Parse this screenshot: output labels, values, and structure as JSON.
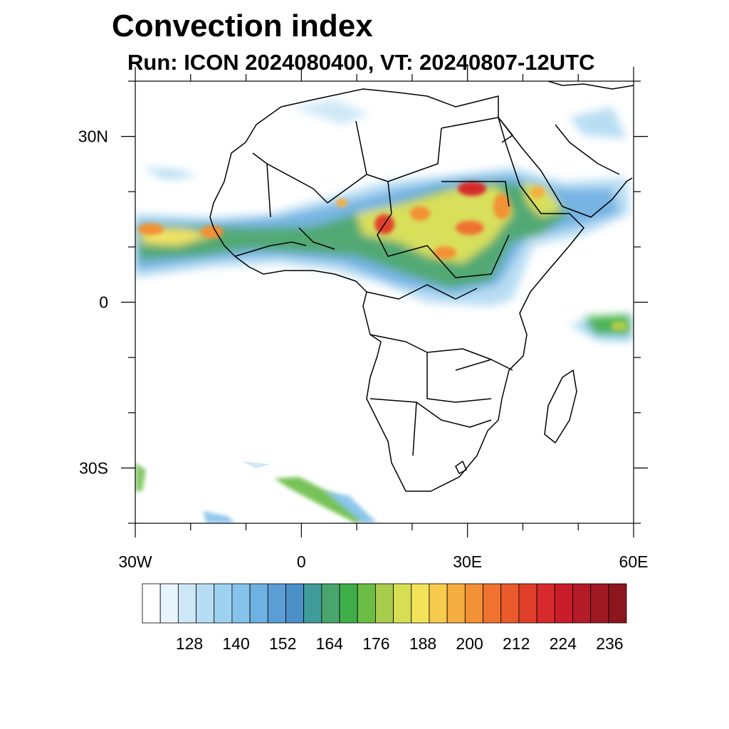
{
  "title": "Convection index",
  "subtitle": "Run: ICON 2024080400,  VT: 20240807-12UTC",
  "map": {
    "lon_range": [
      -30,
      60
    ],
    "lat_range": [
      -40,
      40
    ],
    "lon_tick_labels": [
      "30W",
      "0",
      "30E",
      "60E"
    ],
    "lat_tick_labels": [
      "30N",
      "0",
      "30S"
    ],
    "background": "#ffffff",
    "coastline_color": "#000000"
  },
  "colorbar": {
    "labels": [
      "128",
      "140",
      "152",
      "164",
      "176",
      "188",
      "200",
      "212",
      "224",
      "236"
    ],
    "colors": [
      "#ffffff",
      "#e8f4fb",
      "#cde7f6",
      "#b5dcf3",
      "#9dd3f1",
      "#86c3ea",
      "#6fb1e2",
      "#5b9dd4",
      "#4a8fc6",
      "#3f9c9a",
      "#49a56d",
      "#3fae4a",
      "#6bbd46",
      "#a8cc4b",
      "#d6de52",
      "#f2e35a",
      "#f7cb4e",
      "#f6ad40",
      "#f39136",
      "#ef7230",
      "#ea5a2c",
      "#e0402b",
      "#d72a2c",
      "#c91d2b",
      "#b51a27",
      "#a01822",
      "#8b161d"
    ]
  },
  "features": {
    "convective_regions": [
      "Sahel band 5N-18N",
      "Ethiopian highlands and Red Sea coast",
      "Tropical Atlantic west of Senegal",
      "Indian Ocean near 5S 57E",
      "South Atlantic frontal band near 33S-40S"
    ]
  }
}
